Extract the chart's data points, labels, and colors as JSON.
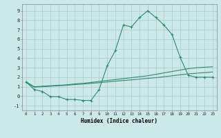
{
  "x_all": [
    0,
    1,
    2,
    3,
    4,
    5,
    6,
    7,
    8,
    9,
    10,
    11,
    12,
    13,
    14,
    15,
    16,
    17,
    18,
    19,
    20,
    21,
    22,
    23
  ],
  "line1_y": [
    1.5,
    0.7,
    0.5,
    -0.05,
    -0.05,
    -0.35,
    -0.35,
    -0.45,
    -0.45,
    0.7,
    3.2,
    4.8,
    7.5,
    7.3,
    8.3,
    9.0,
    8.3,
    7.5,
    6.5,
    4.1,
    2.2,
    2.0,
    2.0,
    2.0
  ],
  "line2_y": [
    1.5,
    1.0,
    1.05,
    1.1,
    1.15,
    1.2,
    1.3,
    1.35,
    1.45,
    1.55,
    1.65,
    1.75,
    1.85,
    1.95,
    2.05,
    2.15,
    2.3,
    2.45,
    2.6,
    2.75,
    2.9,
    3.0,
    3.05,
    3.1
  ],
  "line3_y": [
    1.45,
    0.95,
    1.0,
    1.05,
    1.1,
    1.15,
    1.22,
    1.28,
    1.35,
    1.42,
    1.5,
    1.58,
    1.65,
    1.72,
    1.8,
    1.88,
    1.95,
    2.05,
    2.15,
    2.25,
    2.35,
    2.42,
    2.48,
    2.55
  ],
  "color": "#2e8b6e",
  "bg_color": "#cce8e8",
  "grid_color": "#aacccc",
  "xlabel": "Humidex (Indice chaleur)",
  "xlim": [
    -0.5,
    23.5
  ],
  "ylim": [
    -1.5,
    9.7
  ],
  "yticks": [
    -1,
    0,
    1,
    2,
    3,
    4,
    5,
    6,
    7,
    8,
    9
  ],
  "xticks": [
    0,
    1,
    2,
    3,
    4,
    5,
    6,
    7,
    8,
    9,
    10,
    11,
    12,
    13,
    14,
    15,
    16,
    17,
    18,
    19,
    20,
    21,
    22,
    23
  ]
}
